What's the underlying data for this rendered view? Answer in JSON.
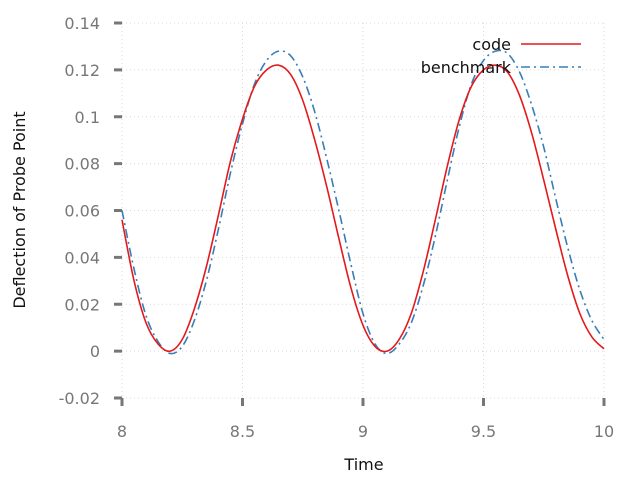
{
  "chart_data": {
    "type": "line",
    "title": "",
    "xlabel": "Time",
    "ylabel": "Deflection of Probe Point",
    "xlim": [
      8,
      10
    ],
    "ylim": [
      -0.02,
      0.14
    ],
    "xticks": [
      8,
      8.5,
      9,
      9.5,
      10
    ],
    "xtick_labels": [
      "8",
      "8.5",
      "9",
      "9.5",
      "10"
    ],
    "yticks": [
      -0.02,
      0,
      0.02,
      0.04,
      0.06,
      0.08,
      0.1,
      0.12,
      0.14
    ],
    "ytick_labels": [
      "-0.02",
      "0",
      "0.02",
      "0.04",
      "0.06",
      "0.08",
      "0.1",
      "0.12",
      "0.14"
    ],
    "grid": true,
    "legend_position": "top-right",
    "series": [
      {
        "name": "code",
        "color": "#e31a1c",
        "dash": "solid",
        "x": [
          8.0,
          8.05,
          8.1,
          8.15,
          8.2,
          8.25,
          8.3,
          8.35,
          8.4,
          8.45,
          8.5,
          8.55,
          8.6,
          8.65,
          8.7,
          8.75,
          8.8,
          8.85,
          8.9,
          8.95,
          9.0,
          9.05,
          9.1,
          9.15,
          9.2,
          9.25,
          9.3,
          9.35,
          9.4,
          9.45,
          9.5,
          9.55,
          9.6,
          9.65,
          9.7,
          9.75,
          9.8,
          9.85,
          9.9,
          9.95,
          10.0
        ],
        "y": [
          0.056,
          0.03,
          0.012,
          0.003,
          0.0,
          0.005,
          0.018,
          0.036,
          0.058,
          0.081,
          0.099,
          0.113,
          0.12,
          0.122,
          0.118,
          0.107,
          0.09,
          0.07,
          0.048,
          0.027,
          0.011,
          0.002,
          0.0,
          0.005,
          0.016,
          0.034,
          0.056,
          0.079,
          0.099,
          0.113,
          0.12,
          0.122,
          0.119,
          0.109,
          0.093,
          0.073,
          0.052,
          0.032,
          0.016,
          0.006,
          0.001
        ]
      },
      {
        "name": "benchmark",
        "color": "#377eb8",
        "dash": "dashdot",
        "x": [
          8.0,
          8.05,
          8.1,
          8.15,
          8.2,
          8.25,
          8.3,
          8.35,
          8.4,
          8.45,
          8.5,
          8.55,
          8.6,
          8.65,
          8.7,
          8.75,
          8.8,
          8.85,
          8.9,
          8.95,
          9.0,
          9.05,
          9.1,
          9.15,
          9.2,
          9.25,
          9.3,
          9.35,
          9.4,
          9.45,
          9.5,
          9.55,
          9.6,
          9.65,
          9.7,
          9.75,
          9.8,
          9.85,
          9.9,
          9.95,
          10.0
        ],
        "y": [
          0.06,
          0.035,
          0.015,
          0.004,
          -0.001,
          0.002,
          0.013,
          0.03,
          0.052,
          0.076,
          0.097,
          0.114,
          0.124,
          0.128,
          0.126,
          0.117,
          0.102,
          0.082,
          0.06,
          0.037,
          0.016,
          0.003,
          -0.001,
          0.003,
          0.012,
          0.028,
          0.049,
          0.073,
          0.096,
          0.114,
          0.124,
          0.128,
          0.127,
          0.119,
          0.105,
          0.087,
          0.065,
          0.044,
          0.026,
          0.013,
          0.005
        ]
      }
    ]
  }
}
